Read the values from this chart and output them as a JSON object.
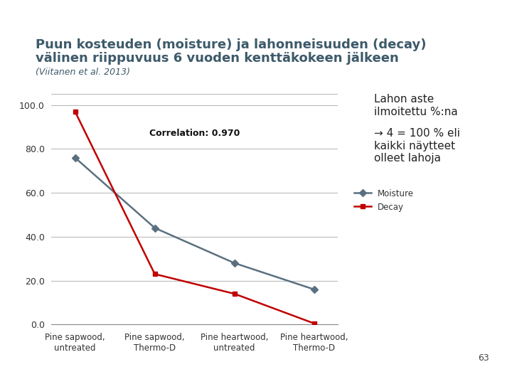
{
  "title_line1": "Puun kosteuden (moisture) ja lahonneisuuden (decay)",
  "title_line2": "välinen riippuvuus 6 vuoden kenttäkokeen jälkeen",
  "subtitle": "(Viitanen et al. 2013)",
  "categories": [
    "Pine sapwood,\nuntreated",
    "Pine sapwood,\nThermo-D",
    "Pine heartwood,\nuntreated",
    "Pine heartwood,\nThermo-D"
  ],
  "moisture_values": [
    76.0,
    44.0,
    28.0,
    16.0
  ],
  "decay_values": [
    97.0,
    23.0,
    14.0,
    0.5
  ],
  "moisture_color": "#5a7080",
  "decay_color": "#c00000",
  "ylim": [
    0.0,
    105.0
  ],
  "yticks": [
    0.0,
    20.0,
    40.0,
    60.0,
    80.0,
    100.0
  ],
  "correlation_text": "Correlation: 0.970",
  "annotation_line1": "Lahon aste",
  "annotation_line2": "ilmoitettu %:na",
  "annotation_line3": "→ 4 = 100 % eli",
  "annotation_line4": "kaikki näytteet",
  "annotation_line5": "olleet lahoja",
  "bg_color": "#ffffff",
  "header_bg": "#6aacce",
  "footer_bg": "#c0192d",
  "page_number": "63",
  "legend_moisture": "Moisture",
  "legend_decay": "Decay",
  "title_color": "#3d5a6a",
  "subtitle_color": "#3d5a6a"
}
